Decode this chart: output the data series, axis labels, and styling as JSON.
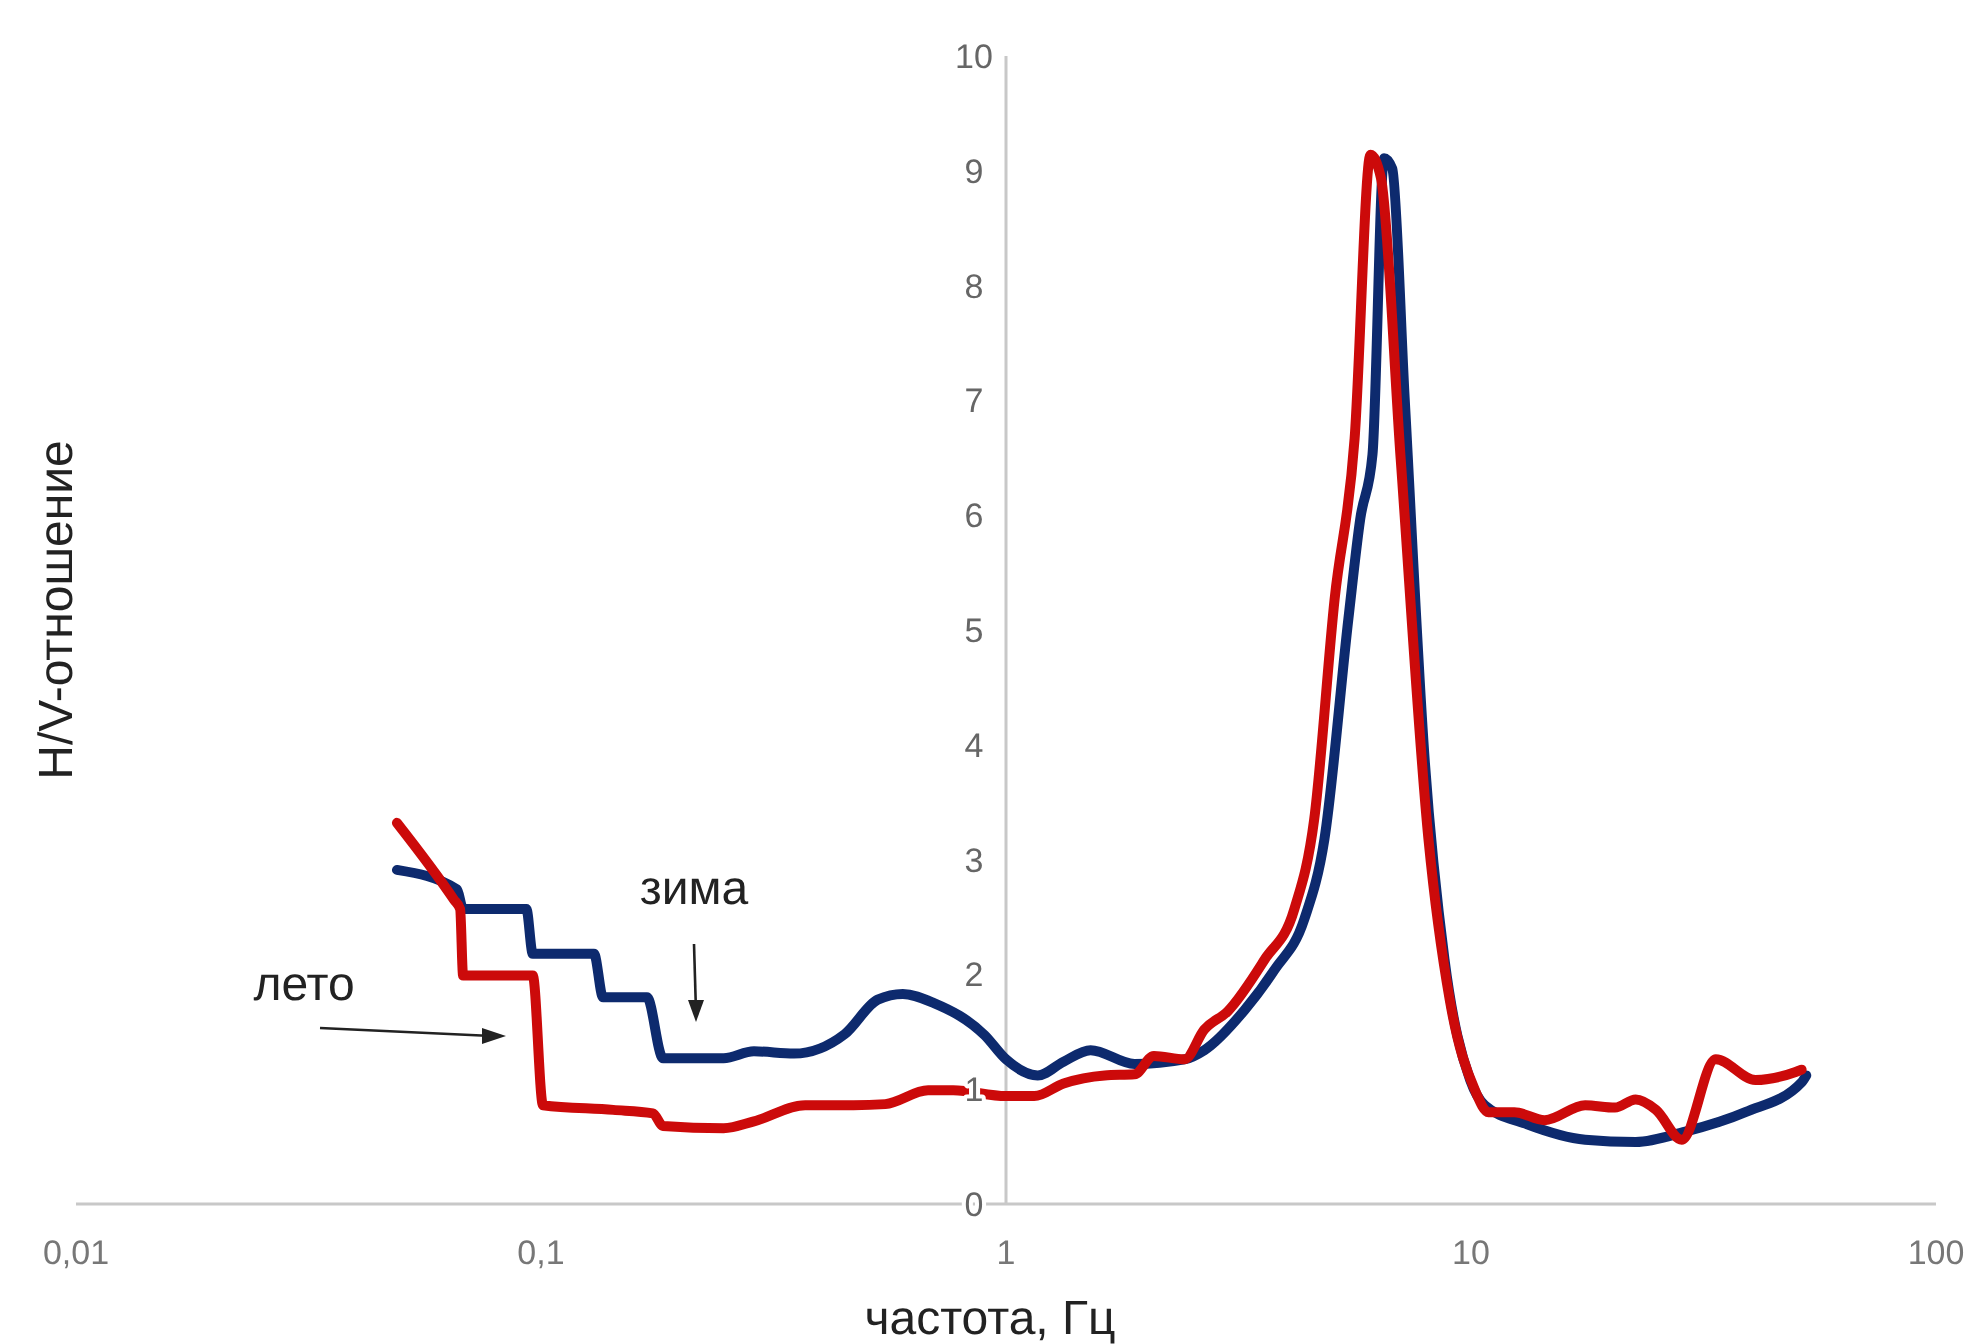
{
  "chart_data": {
    "type": "line",
    "xlabel": "частота, Гц",
    "ylabel": "H/V-отношение",
    "log": "x",
    "grid": false,
    "marker": "none",
    "line_style": "solid",
    "xlim": [
      0.01,
      100
    ],
    "xticks": [
      {
        "value": 0.01,
        "label": "0,01"
      },
      {
        "value": 0.1,
        "label": "0,1"
      },
      1,
      10,
      100
    ],
    "ylim": [
      0,
      10
    ],
    "yticks": [
      0,
      1,
      2,
      3,
      4,
      5,
      6,
      7,
      8,
      9,
      10
    ],
    "annotations": [
      "зима",
      "лето"
    ],
    "series": [
      {
        "color": "#0d2a6e",
        "x": [
          0.049,
          0.066,
          0.068,
          0.093,
          0.096,
          0.13,
          0.136,
          0.169,
          0.183,
          0.247,
          0.287,
          0.35,
          0.45,
          0.53,
          0.6,
          0.7,
          0.9,
          1.0,
          1.17,
          1.33,
          1.52,
          1.89,
          2.42,
          2.67,
          3.26,
          3.78,
          4.38,
          4.84,
          5.45,
          5.78,
          6.14,
          6.5,
          6.77,
          7.2,
          7.95,
          8.77,
          9.96,
          10.7,
          13.1,
          17.6,
          22.6,
          28.9,
          38.9,
          51.4,
          52.6
        ],
        "values": [
          2.91,
          2.74,
          2.57,
          2.57,
          2.18,
          2.18,
          1.8,
          1.8,
          1.27,
          1.27,
          1.33,
          1.31,
          1.48,
          1.78,
          1.83,
          1.75,
          1.47,
          1.26,
          1.12,
          1.24,
          1.34,
          1.22,
          1.26,
          1.34,
          1.69,
          2.04,
          2.48,
          3.18,
          5.1,
          5.97,
          6.53,
          9.11,
          9.02,
          7.02,
          3.87,
          2.13,
          1.08,
          0.86,
          0.7,
          0.56,
          0.54,
          0.63,
          0.8,
          1.06,
          1.12
        ]
      },
      {
        "color": "#cc0a0a",
        "x": [
          0.049,
          0.065,
          0.067,
          0.068,
          0.096,
          0.101,
          0.143,
          0.174,
          0.183,
          0.247,
          0.287,
          0.37,
          0.47,
          0.55,
          0.68,
          0.77,
          1.0,
          1.15,
          1.33,
          1.63,
          1.89,
          2.08,
          2.42,
          2.67,
          3.0,
          3.6,
          4.17,
          4.6,
          5.09,
          5.62,
          6.08,
          6.4,
          7.06,
          8.1,
          9.0,
          10.2,
          10.9,
          12.4,
          14.4,
          17.6,
          20.4,
          22.6,
          25.0,
          28.4,
          33.6,
          40.9,
          49.9,
          51.4
        ],
        "values": [
          3.32,
          2.65,
          2.57,
          1.99,
          1.99,
          0.86,
          0.82,
          0.79,
          0.68,
          0.66,
          0.72,
          0.86,
          0.86,
          0.87,
          0.99,
          0.99,
          0.94,
          0.94,
          1.05,
          1.12,
          1.13,
          1.29,
          1.26,
          1.52,
          1.68,
          2.13,
          2.57,
          3.35,
          5.27,
          6.67,
          9.14,
          8.94,
          6.49,
          3.18,
          1.78,
          0.99,
          0.8,
          0.8,
          0.73,
          0.86,
          0.84,
          0.91,
          0.82,
          0.56,
          1.26,
          1.08,
          1.15,
          1.17
        ]
      }
    ]
  }
}
